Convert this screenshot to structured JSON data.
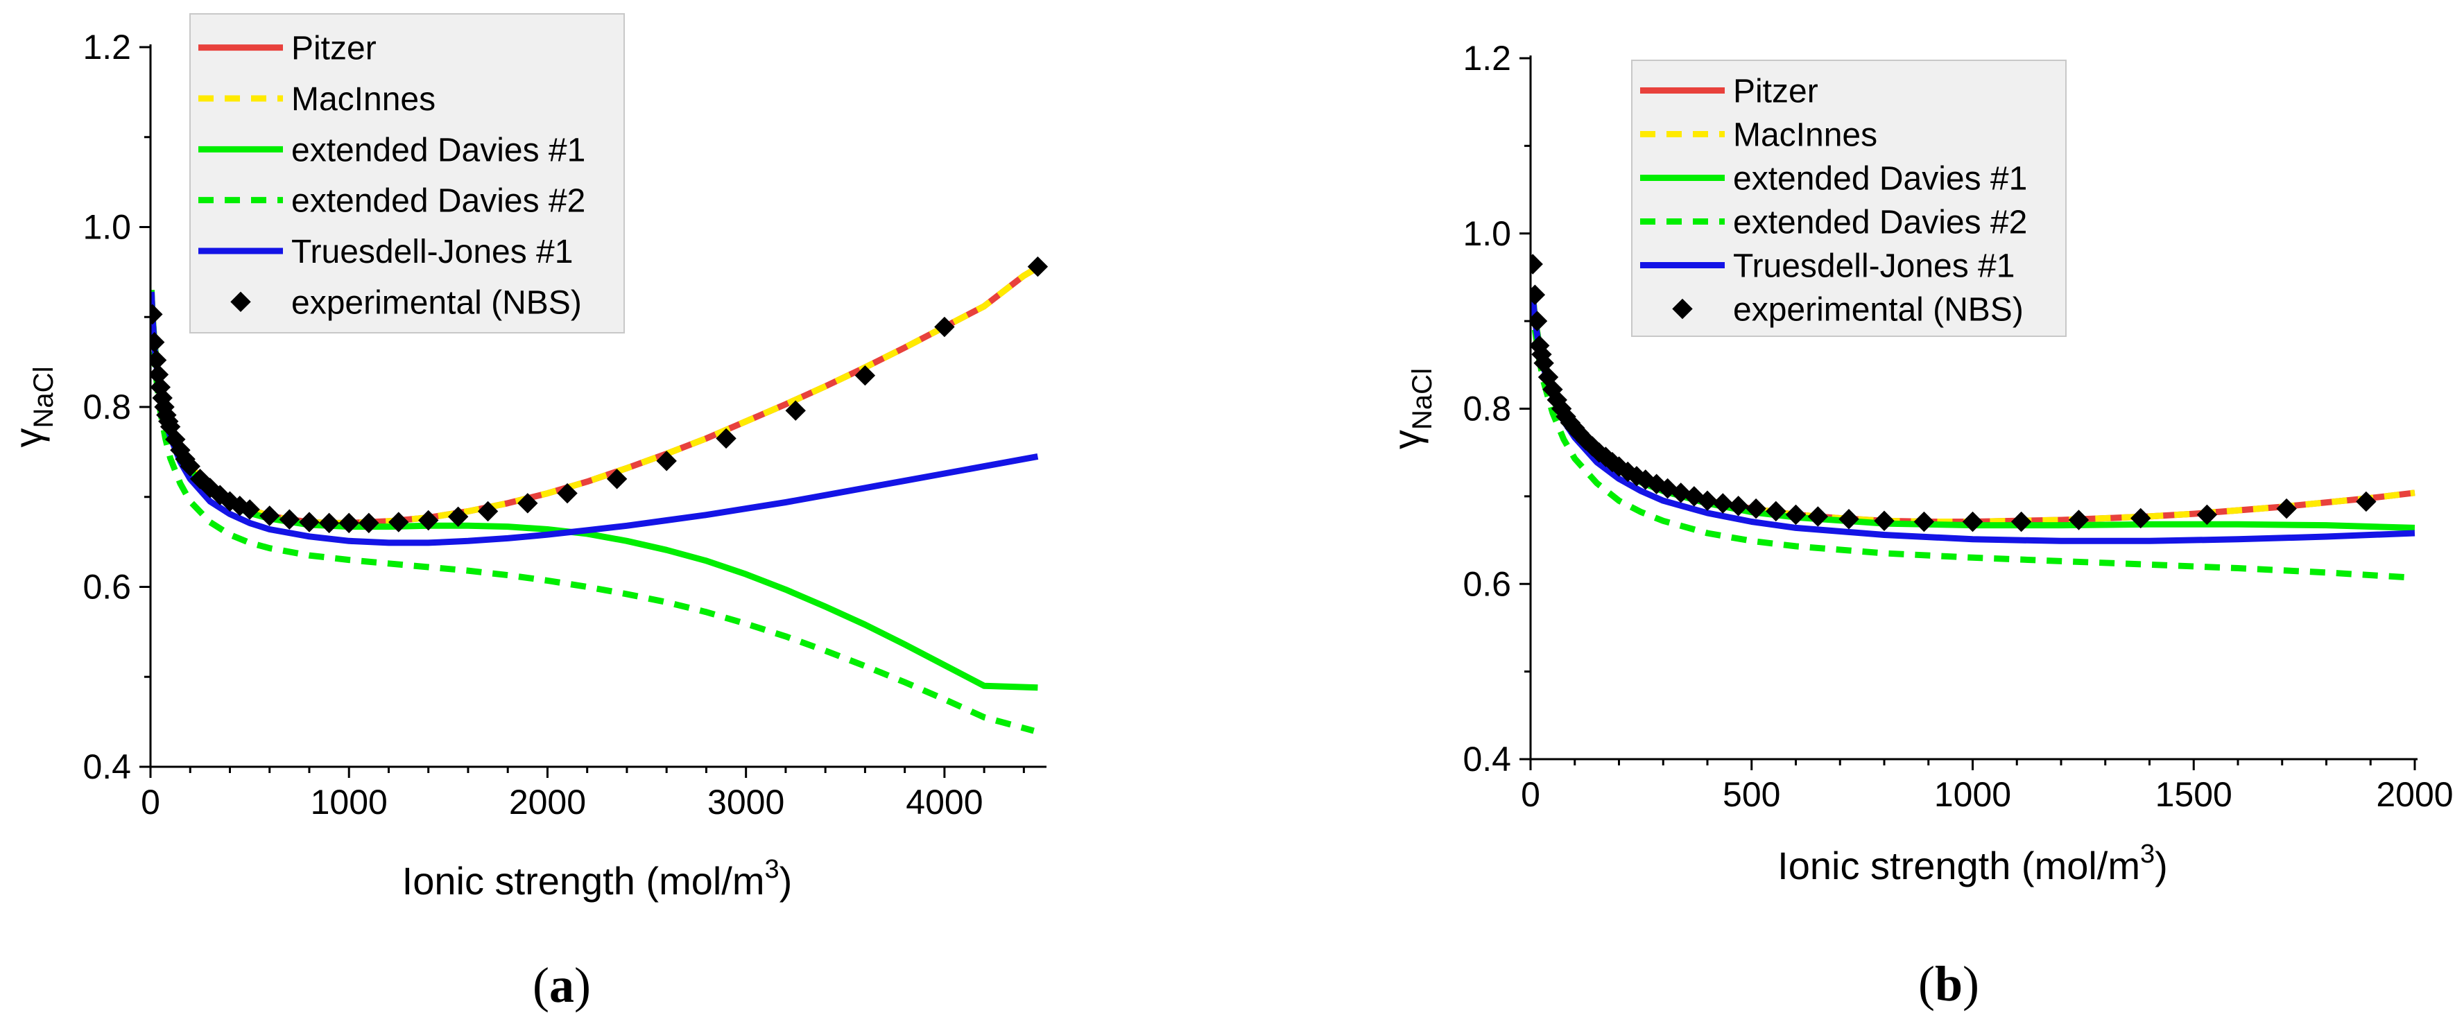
{
  "chart_data": [
    {
      "type": "line",
      "panel_label": "(a)",
      "panel_letter": "a",
      "xlabel_main": "Ionic strength (mol/m",
      "xlabel_sup": "3",
      "xlabel_close": ")",
      "ylabel_main": "γ",
      "ylabel_sub": "NaCl",
      "xlim": [
        0,
        4500
      ],
      "ylim": [
        0.4,
        1.2
      ],
      "xticks": [
        0,
        1000,
        2000,
        3000,
        4000
      ],
      "xtick_labels": [
        "0",
        "1000",
        "2000",
        "3000",
        "4000"
      ],
      "xminor_step": 200,
      "yticks": [
        0.4,
        0.6,
        0.8,
        1.0,
        1.2
      ],
      "ytick_labels": [
        "0.4",
        "0.6",
        "0.8",
        "1.0",
        "1.2"
      ],
      "yminor_step": 0.1,
      "legend": "top-left",
      "series": [
        {
          "name": "Pitzer",
          "color": "#e8413c",
          "style": "solid",
          "x": [
            5,
            10,
            20,
            30,
            50,
            75,
            100,
            150,
            200,
            300,
            400,
            500,
            600,
            700,
            800,
            900,
            1000,
            1200,
            1400,
            1600,
            1800,
            2000,
            2200,
            2400,
            2600,
            2800,
            3000,
            3200,
            3400,
            3600,
            3800,
            4000,
            4200,
            4400,
            4470
          ],
          "y": [
            0.93,
            0.903,
            0.872,
            0.852,
            0.822,
            0.795,
            0.778,
            0.752,
            0.734,
            0.71,
            0.695,
            0.686,
            0.679,
            0.675,
            0.672,
            0.671,
            0.671,
            0.673,
            0.677,
            0.684,
            0.693,
            0.704,
            0.717,
            0.732,
            0.748,
            0.765,
            0.784,
            0.803,
            0.823,
            0.844,
            0.866,
            0.889,
            0.912,
            0.946,
            0.955
          ]
        },
        {
          "name": "MacInnes",
          "color": "#ffea00",
          "style": "dashed",
          "x": [
            5,
            10,
            20,
            30,
            50,
            75,
            100,
            150,
            200,
            300,
            400,
            500,
            600,
            700,
            800,
            900,
            1000,
            1200,
            1400,
            1600,
            1800,
            2000,
            2200,
            2400,
            2600,
            2800,
            3000,
            3200,
            3400,
            3600,
            3800,
            4000,
            4200,
            4400,
            4470
          ],
          "y": [
            0.93,
            0.903,
            0.872,
            0.852,
            0.822,
            0.795,
            0.778,
            0.752,
            0.734,
            0.71,
            0.695,
            0.686,
            0.679,
            0.675,
            0.672,
            0.671,
            0.671,
            0.673,
            0.677,
            0.684,
            0.693,
            0.704,
            0.717,
            0.732,
            0.748,
            0.765,
            0.784,
            0.803,
            0.823,
            0.844,
            0.866,
            0.889,
            0.912,
            0.946,
            0.955
          ]
        },
        {
          "name": "extended Davies #1",
          "color": "#00ee00",
          "style": "solid",
          "x": [
            5,
            10,
            20,
            30,
            50,
            75,
            100,
            150,
            200,
            300,
            400,
            500,
            600,
            800,
            1000,
            1200,
            1400,
            1600,
            1800,
            2000,
            2200,
            2400,
            2600,
            2800,
            3000,
            3200,
            3400,
            3600,
            3800,
            4000,
            4200,
            4470
          ],
          "y": [
            0.93,
            0.903,
            0.872,
            0.852,
            0.82,
            0.793,
            0.775,
            0.749,
            0.73,
            0.706,
            0.692,
            0.682,
            0.676,
            0.669,
            0.667,
            0.667,
            0.668,
            0.668,
            0.667,
            0.664,
            0.659,
            0.651,
            0.641,
            0.629,
            0.614,
            0.597,
            0.578,
            0.558,
            0.536,
            0.513,
            0.49,
            0.488
          ]
        },
        {
          "name": "extended Davies #2",
          "color": "#00ee00",
          "style": "dashed",
          "x": [
            5,
            10,
            20,
            30,
            50,
            75,
            100,
            150,
            200,
            300,
            400,
            500,
            600,
            800,
            1000,
            1200,
            1400,
            1600,
            1800,
            2000,
            2200,
            2400,
            2600,
            2800,
            3000,
            3200,
            3400,
            3600,
            3800,
            4000,
            4200,
            4450
          ],
          "y": [
            0.92,
            0.89,
            0.855,
            0.83,
            0.795,
            0.765,
            0.743,
            0.715,
            0.695,
            0.672,
            0.658,
            0.649,
            0.643,
            0.635,
            0.63,
            0.626,
            0.622,
            0.618,
            0.613,
            0.607,
            0.6,
            0.592,
            0.583,
            0.572,
            0.559,
            0.545,
            0.529,
            0.512,
            0.494,
            0.475,
            0.455,
            0.44
          ]
        },
        {
          "name": "Truesdell-Jones #1",
          "color": "#1414e6",
          "style": "solid",
          "x": [
            5,
            10,
            20,
            30,
            50,
            75,
            100,
            150,
            200,
            300,
            400,
            500,
            600,
            800,
            1000,
            1200,
            1400,
            1600,
            1800,
            2000,
            2200,
            2400,
            2600,
            2800,
            3000,
            3200,
            3400,
            3600,
            3800,
            4000,
            4200,
            4470
          ],
          "y": [
            0.928,
            0.9,
            0.868,
            0.846,
            0.814,
            0.786,
            0.767,
            0.739,
            0.72,
            0.695,
            0.681,
            0.671,
            0.664,
            0.656,
            0.651,
            0.649,
            0.649,
            0.651,
            0.654,
            0.658,
            0.663,
            0.668,
            0.674,
            0.68,
            0.687,
            0.694,
            0.702,
            0.71,
            0.718,
            0.726,
            0.734,
            0.745
          ]
        },
        {
          "name": "experimental (NBS)",
          "color": "#000000",
          "style": "markers",
          "x": [
            10,
            20,
            30,
            40,
            50,
            60,
            70,
            80,
            90,
            100,
            125,
            150,
            175,
            200,
            250,
            300,
            350,
            400,
            450,
            500,
            600,
            700,
            800,
            900,
            1000,
            1100,
            1250,
            1400,
            1550,
            1700,
            1900,
            2100,
            2350,
            2600,
            2900,
            3250,
            3600,
            4000,
            4470
          ],
          "y": [
            0.903,
            0.872,
            0.852,
            0.836,
            0.822,
            0.81,
            0.8,
            0.791,
            0.784,
            0.778,
            0.764,
            0.752,
            0.742,
            0.734,
            0.72,
            0.71,
            0.702,
            0.695,
            0.69,
            0.686,
            0.679,
            0.675,
            0.672,
            0.671,
            0.671,
            0.671,
            0.672,
            0.674,
            0.678,
            0.684,
            0.693,
            0.704,
            0.72,
            0.74,
            0.765,
            0.796,
            0.835,
            0.889,
            0.956
          ]
        }
      ]
    },
    {
      "type": "line",
      "panel_label": "(b)",
      "panel_letter": "b",
      "xlabel_main": "Ionic strength (mol/m",
      "xlabel_sup": "3",
      "xlabel_close": ")",
      "ylabel_main": "γ",
      "ylabel_sub": "NaCl",
      "xlim": [
        0,
        2000
      ],
      "ylim": [
        0.4,
        1.2
      ],
      "xticks": [
        0,
        500,
        1000,
        1500,
        2000
      ],
      "xtick_labels": [
        "0",
        "500",
        "1000",
        "1500",
        "2000"
      ],
      "xminor_step": 100,
      "yticks": [
        0.4,
        0.6,
        0.8,
        1.0,
        1.2
      ],
      "ytick_labels": [
        "0.4",
        "0.6",
        "0.8",
        "1.0",
        "1.2"
      ],
      "yminor_step": 0.1,
      "legend": "top-left",
      "series": [
        {
          "name": "Pitzer",
          "color": "#e8413c",
          "style": "solid",
          "x": [
            5,
            10,
            20,
            30,
            50,
            75,
            100,
            150,
            200,
            250,
            300,
            400,
            500,
            600,
            700,
            800,
            900,
            1000,
            1100,
            1200,
            1300,
            1400,
            1500,
            1600,
            1700,
            1800,
            1900,
            2000
          ],
          "y": [
            0.93,
            0.903,
            0.872,
            0.852,
            0.822,
            0.795,
            0.778,
            0.752,
            0.734,
            0.72,
            0.71,
            0.695,
            0.686,
            0.679,
            0.675,
            0.672,
            0.671,
            0.671,
            0.672,
            0.673,
            0.675,
            0.677,
            0.68,
            0.684,
            0.688,
            0.693,
            0.698,
            0.704
          ]
        },
        {
          "name": "MacInnes",
          "color": "#ffea00",
          "style": "dashed",
          "x": [
            5,
            10,
            20,
            30,
            50,
            75,
            100,
            150,
            200,
            250,
            300,
            400,
            500,
            600,
            700,
            800,
            900,
            1000,
            1100,
            1200,
            1300,
            1400,
            1500,
            1600,
            1700,
            1800,
            1900,
            2000
          ],
          "y": [
            0.93,
            0.903,
            0.872,
            0.852,
            0.822,
            0.795,
            0.778,
            0.752,
            0.734,
            0.72,
            0.71,
            0.695,
            0.686,
            0.679,
            0.675,
            0.672,
            0.671,
            0.671,
            0.672,
            0.673,
            0.675,
            0.677,
            0.68,
            0.684,
            0.688,
            0.693,
            0.698,
            0.704
          ]
        },
        {
          "name": "extended Davies #1",
          "color": "#00ee00",
          "style": "solid",
          "x": [
            5,
            10,
            20,
            30,
            50,
            75,
            100,
            150,
            200,
            250,
            300,
            400,
            500,
            600,
            800,
            1000,
            1200,
            1400,
            1600,
            1800,
            2000
          ],
          "y": [
            0.93,
            0.903,
            0.872,
            0.852,
            0.82,
            0.793,
            0.775,
            0.749,
            0.73,
            0.716,
            0.706,
            0.692,
            0.682,
            0.676,
            0.669,
            0.667,
            0.667,
            0.668,
            0.668,
            0.667,
            0.664
          ]
        },
        {
          "name": "extended Davies #2",
          "color": "#00ee00",
          "style": "dashed",
          "x": [
            5,
            10,
            20,
            30,
            50,
            75,
            100,
            150,
            200,
            250,
            300,
            400,
            500,
            600,
            800,
            1000,
            1200,
            1400,
            1600,
            1800,
            2000
          ],
          "y": [
            0.92,
            0.89,
            0.855,
            0.83,
            0.795,
            0.765,
            0.743,
            0.715,
            0.695,
            0.682,
            0.672,
            0.658,
            0.649,
            0.643,
            0.635,
            0.63,
            0.626,
            0.622,
            0.618,
            0.613,
            0.607
          ]
        },
        {
          "name": "Truesdell-Jones #1",
          "color": "#1414e6",
          "style": "solid",
          "x": [
            5,
            10,
            20,
            30,
            50,
            75,
            100,
            150,
            200,
            250,
            300,
            400,
            500,
            600,
            800,
            1000,
            1200,
            1400,
            1600,
            1800,
            2000
          ],
          "y": [
            0.928,
            0.9,
            0.868,
            0.846,
            0.814,
            0.786,
            0.767,
            0.739,
            0.72,
            0.706,
            0.695,
            0.681,
            0.671,
            0.664,
            0.656,
            0.651,
            0.649,
            0.649,
            0.651,
            0.654,
            0.658
          ]
        },
        {
          "name": "experimental (NBS)",
          "color": "#000000",
          "style": "markers",
          "x": [
            5,
            10,
            15,
            20,
            25,
            30,
            40,
            50,
            60,
            70,
            80,
            90,
            100,
            110,
            125,
            140,
            155,
            170,
            185,
            200,
            220,
            240,
            260,
            285,
            310,
            340,
            370,
            400,
            435,
            470,
            510,
            555,
            600,
            650,
            720,
            800,
            890,
            1000,
            1110,
            1240,
            1380,
            1530,
            1710,
            1890
          ],
          "y": [
            0.965,
            0.93,
            0.9,
            0.872,
            0.862,
            0.852,
            0.836,
            0.822,
            0.81,
            0.8,
            0.791,
            0.784,
            0.778,
            0.772,
            0.764,
            0.757,
            0.75,
            0.745,
            0.739,
            0.734,
            0.728,
            0.723,
            0.719,
            0.714,
            0.709,
            0.704,
            0.7,
            0.695,
            0.692,
            0.689,
            0.686,
            0.683,
            0.679,
            0.677,
            0.674,
            0.672,
            0.671,
            0.671,
            0.671,
            0.673,
            0.675,
            0.679,
            0.686,
            0.694
          ]
        }
      ]
    }
  ]
}
